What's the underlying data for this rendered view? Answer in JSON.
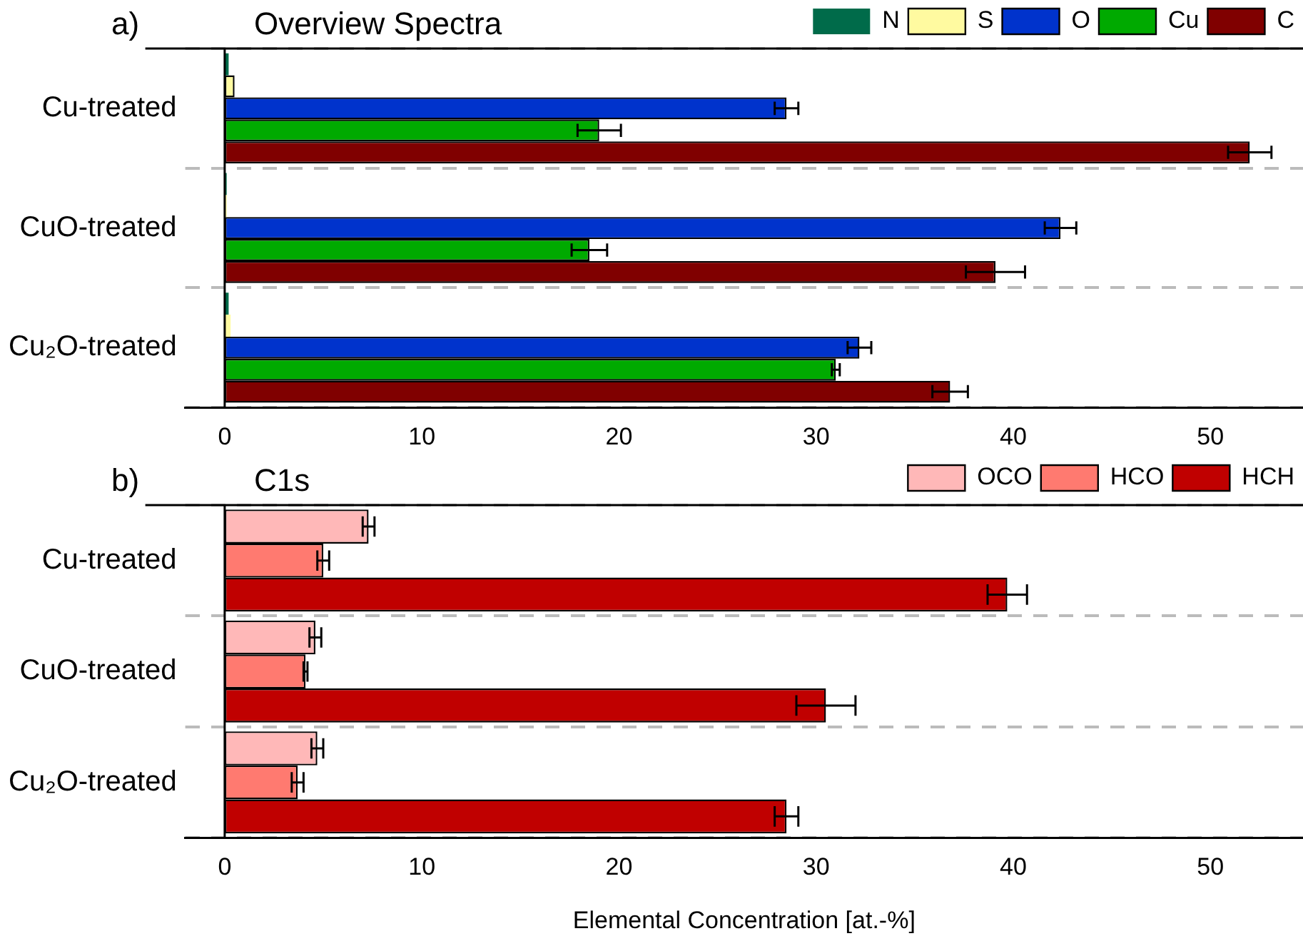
{
  "chart_data": [
    {
      "type": "bar",
      "orientation": "horizontal",
      "title": "Overview Spectra",
      "annotations": [
        "a)"
      ],
      "categories": [
        "Cu-treated",
        "CuO-treated",
        "Cu₂O-treated"
      ],
      "series": [
        {
          "name": "N",
          "color": "#006b4a",
          "values": [
            0.2,
            0.1,
            0.2
          ]
        },
        {
          "name": "S",
          "color": "#fffaa0",
          "values": [
            0.5,
            0.1,
            0.3
          ]
        },
        {
          "name": "O",
          "color": "#0033cc",
          "values": [
            28.5,
            42.4,
            32.2
          ],
          "errors": [
            0.6,
            0.8,
            0.6
          ]
        },
        {
          "name": "Cu",
          "color": "#00aa00",
          "values": [
            19.0,
            18.5,
            31.0
          ],
          "errors": [
            1.1,
            0.9,
            0.2
          ]
        },
        {
          "name": "C",
          "color": "#800000",
          "values": [
            52.0,
            39.1,
            36.8
          ],
          "errors": [
            1.1,
            1.5,
            0.9
          ]
        }
      ],
      "xlim": [
        -2,
        54.7
      ],
      "xticks": [
        0,
        10,
        20,
        30,
        40,
        50
      ],
      "grid": "y",
      "legend": "top right"
    },
    {
      "type": "bar",
      "orientation": "horizontal",
      "title": "C1s",
      "annotations": [
        "b)"
      ],
      "xlabel": "Elemental Concentration [at.-%]",
      "categories": [
        "Cu-treated",
        "CuO-treated",
        "Cu₂O-treated"
      ],
      "series": [
        {
          "name": "OCO",
          "color": "#ffb8b8",
          "values": [
            7.3,
            4.6,
            4.7
          ],
          "errors": [
            0.3,
            0.3,
            0.3
          ]
        },
        {
          "name": "HCO",
          "color": "#ff7a70",
          "values": [
            5.0,
            4.1,
            3.7
          ],
          "errors": [
            0.3,
            0.1,
            0.3
          ]
        },
        {
          "name": "HCH",
          "color": "#c00000",
          "values": [
            39.7,
            30.5,
            28.5
          ],
          "errors": [
            1.0,
            1.5,
            0.6
          ]
        }
      ],
      "xlim": [
        -2,
        54.7
      ],
      "xticks": [
        0,
        10,
        20,
        30,
        40,
        50
      ],
      "grid": "y",
      "legend": "top right"
    }
  ]
}
